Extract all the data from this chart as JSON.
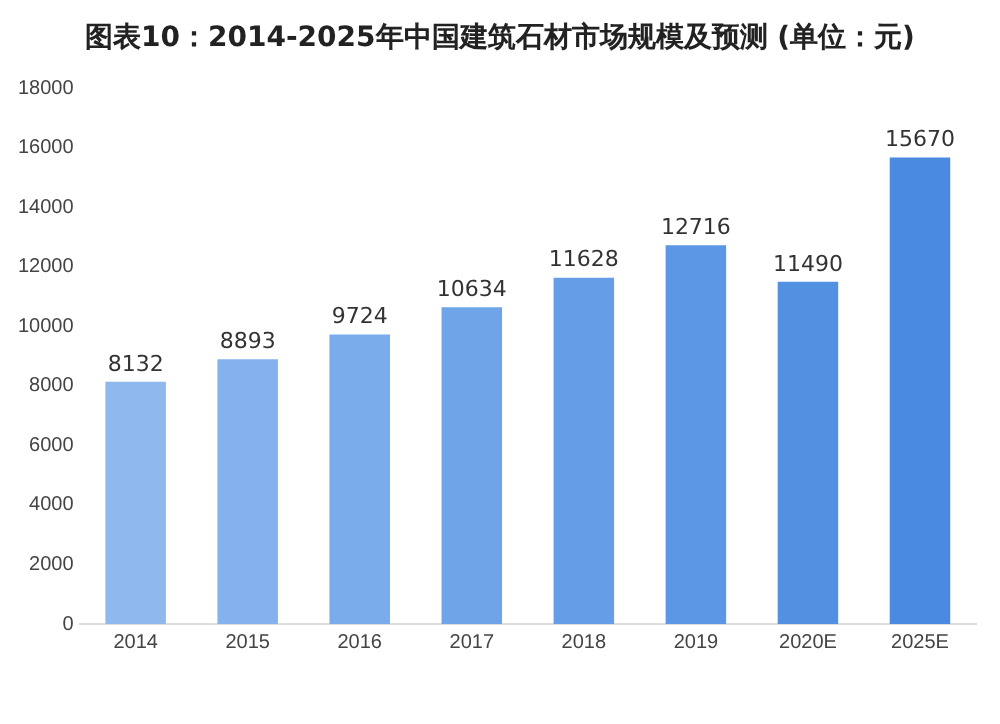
{
  "chart_data": {
    "type": "bar",
    "title": "图表10：2014-2025年中国建筑石材市场规模及预测 (单位：元)",
    "categories": [
      "2014",
      "2015",
      "2016",
      "2017",
      "2018",
      "2019",
      "2020E",
      "2025E"
    ],
    "values": [
      8132,
      8893,
      9724,
      10634,
      11628,
      12716,
      11490,
      15670
    ],
    "colors": [
      "#8fb8ef",
      "#85b2ee",
      "#7aabeb",
      "#6fa4e8",
      "#659de6",
      "#5b97e4",
      "#5290e2",
      "#4a8ae0"
    ],
    "ylim": [
      0,
      18000
    ],
    "yticks": [
      0,
      2000,
      4000,
      6000,
      8000,
      10000,
      12000,
      14000,
      16000,
      18000
    ],
    "grid": false,
    "legend": false,
    "data_labels": true
  }
}
